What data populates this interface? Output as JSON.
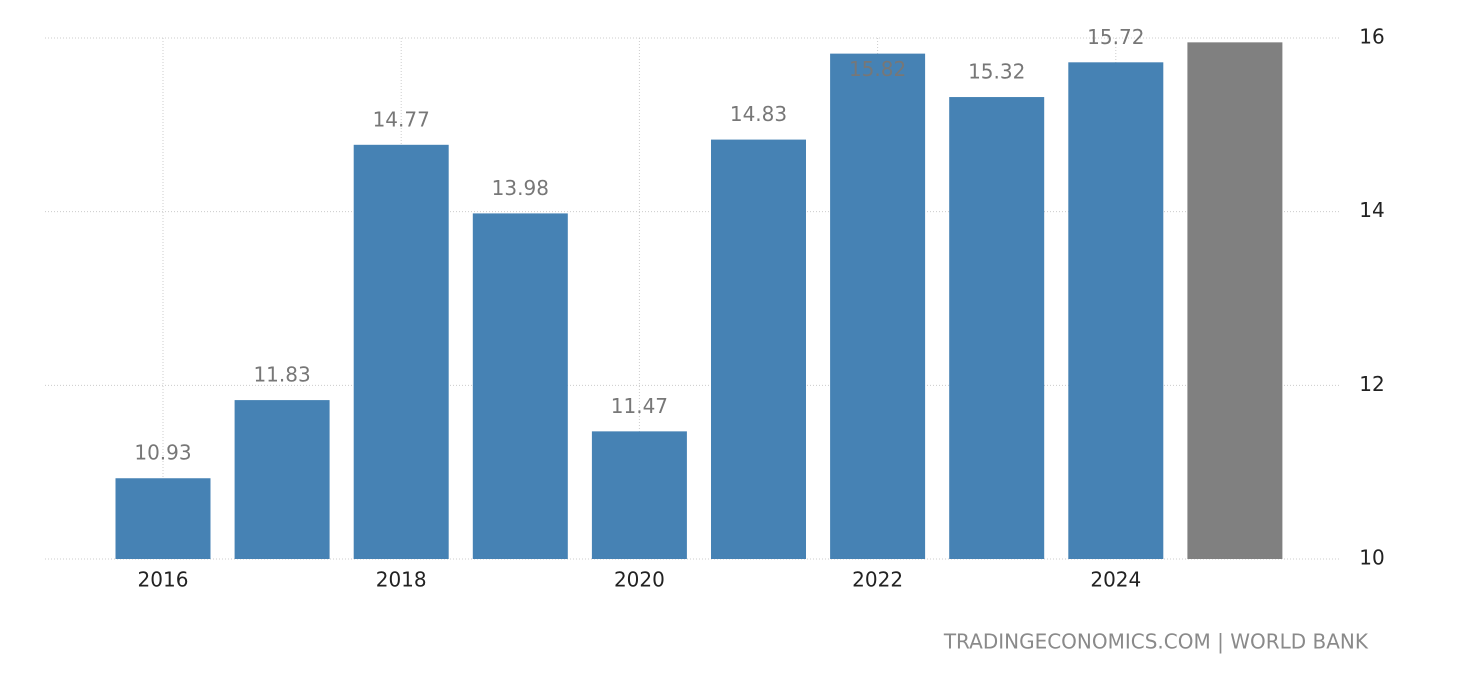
{
  "chart_data": {
    "type": "bar",
    "categories": [
      "2016",
      null,
      "2018",
      null,
      "2020",
      null,
      "2022",
      null,
      "2024",
      null
    ],
    "values": [
      10.93,
      11.83,
      14.77,
      13.98,
      11.47,
      14.83,
      15.82,
      15.32,
      15.72,
      15.95
    ],
    "value_labels": [
      "10.93",
      "11.83",
      "14.77",
      "13.98",
      "11.47",
      "14.83",
      "15.82",
      "15.32",
      "15.72",
      null
    ],
    "colors": [
      "#4682b4",
      "#4682b4",
      "#4682b4",
      "#4682b4",
      "#4682b4",
      "#4682b4",
      "#4682b4",
      "#4682b4",
      "#4682b4",
      "#808080"
    ],
    "ylim": [
      10,
      16
    ],
    "yticks": [
      10,
      12,
      14,
      16
    ],
    "grid": true,
    "source": "TRADINGECONOMICS.COM | WORLD BANK"
  }
}
